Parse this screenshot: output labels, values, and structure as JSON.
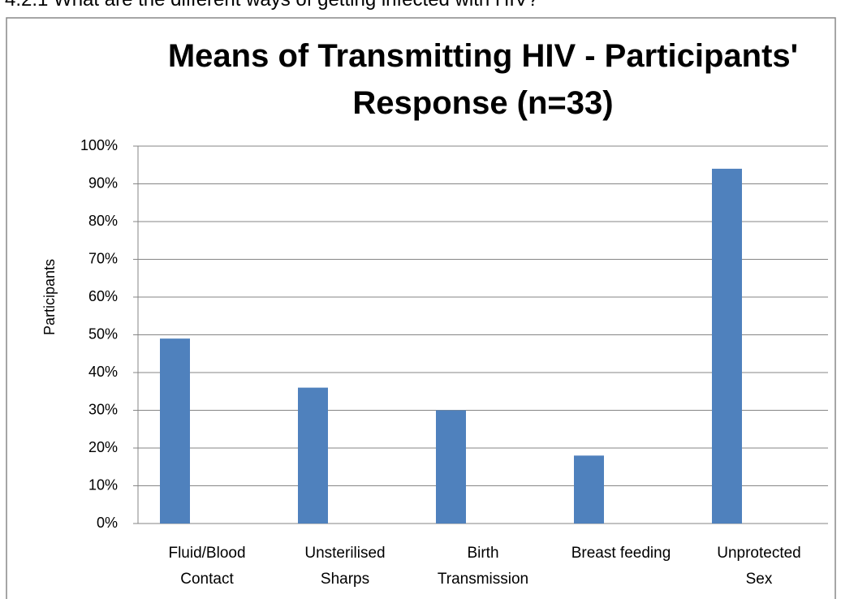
{
  "heading": "4.2.1 What are the different ways of getting infected with HIV?",
  "chart_data": {
    "type": "bar",
    "title": "Means of Transmitting HIV - Participants'\nResponse  (n=33)",
    "y_label": "Participants",
    "categories": [
      "Fluid/Blood\nContact",
      "Unsterilised\nSharps",
      "Birth\nTransmission",
      "Breast feeding",
      "Unprotected\nSex"
    ],
    "values": [
      49,
      36,
      30,
      18,
      94
    ],
    "color": "#4f81bd",
    "ylim": [
      0,
      100
    ],
    "yticks": [
      {
        "value": 0,
        "label": "0%"
      },
      {
        "value": 10,
        "label": "10%"
      },
      {
        "value": 20,
        "label": "20%"
      },
      {
        "value": 30,
        "label": "30%"
      },
      {
        "value": 40,
        "label": "40%"
      },
      {
        "value": 50,
        "label": "50%"
      },
      {
        "value": 60,
        "label": "60%"
      },
      {
        "value": 70,
        "label": "70%"
      },
      {
        "value": 80,
        "label": "80%"
      },
      {
        "value": 90,
        "label": "90%"
      },
      {
        "value": 100,
        "label": "100%"
      }
    ],
    "grid": true
  }
}
